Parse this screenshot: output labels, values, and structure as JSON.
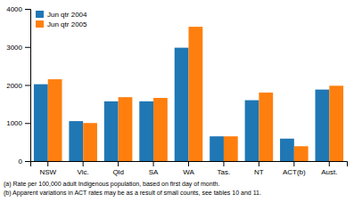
{
  "chart_data": {
    "type": "bar",
    "categories": [
      "NSW",
      "Vic.",
      "Qld",
      "SA",
      "WA",
      "Tas.",
      "NT",
      "ACT(b)",
      "Aust."
    ],
    "series": [
      {
        "name": "Jun qtr 2004",
        "values": [
          2020,
          1050,
          1570,
          1570,
          2980,
          650,
          1600,
          590,
          1880
        ]
      },
      {
        "name": "Jun qtr 2005",
        "values": [
          2150,
          1000,
          1680,
          1660,
          3530,
          650,
          1800,
          390,
          1980
        ]
      }
    ],
    "ylim": [
      0,
      4000
    ],
    "yticks": [
      0,
      1000,
      2000,
      3000,
      4000
    ],
    "grid": false,
    "legend": "upper-left",
    "annotations": [
      "(a) Rate per 100,000 adult Indigenous population, based on first day of month.",
      "(b) Apparent variations in ACT rates may be as a result of small counts, see tables 10 and 11."
    ]
  }
}
